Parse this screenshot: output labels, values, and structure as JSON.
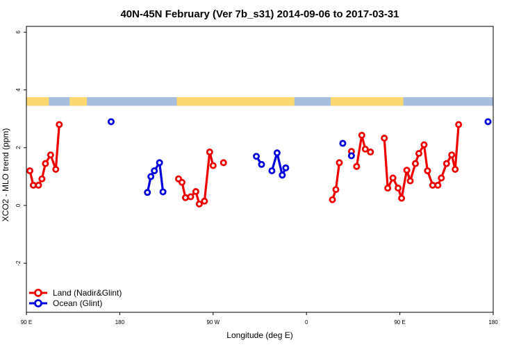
{
  "chart_data": {
    "type": "line",
    "title": "40N-45N February (Ver 7b_s31)   2014-09-06 to 2017-03-31",
    "xlabel": "Longitude (deg E)",
    "ylabel": "XCO2 - MLO trend (ppm)",
    "xlim": [
      -90,
      180
    ],
    "ylim": [
      -3.7,
      6.2
    ],
    "x_ticks": [
      {
        "value": -90,
        "label": "90 E"
      },
      {
        "value": -36,
        "label": "180"
      },
      {
        "value": 18,
        "label": "90 W"
      },
      {
        "value": 72,
        "label": "0"
      },
      {
        "value": 126,
        "label": "90 E"
      },
      {
        "value": 180,
        "label": "180"
      }
    ],
    "y_ticks": [
      {
        "value": -2,
        "label": "-2"
      },
      {
        "value": 0,
        "label": "0"
      },
      {
        "value": 2,
        "label": "2"
      },
      {
        "value": 4,
        "label": "4"
      },
      {
        "value": 6,
        "label": "6"
      }
    ],
    "legend_position": "bottom-left",
    "land_ocean_strip": {
      "y_range": [
        3.45,
        3.75
      ],
      "land_color": "#fcd970",
      "ocean_color": "#a8bede",
      "land_segments": [
        [
          -90,
          -77
        ],
        [
          -65,
          -55
        ],
        [
          -3,
          65
        ],
        [
          86,
          128
        ]
      ]
    },
    "series": [
      {
        "name": "Land (Nadir&Glint)",
        "color": "#ee0000",
        "segments": [
          [
            [
              -88,
              1.2
            ],
            [
              -86,
              0.7
            ],
            [
              -83,
              0.7
            ],
            [
              -81,
              0.92
            ],
            [
              -79,
              1.45
            ],
            [
              -76,
              1.75
            ],
            [
              -73,
              1.25
            ],
            [
              -71,
              2.8
            ]
          ],
          [
            [
              -2,
              0.92
            ],
            [
              0,
              0.8
            ],
            [
              2,
              0.27
            ],
            [
              5,
              0.3
            ],
            [
              8,
              0.48
            ],
            [
              10,
              0.05
            ],
            [
              13,
              0.15
            ],
            [
              16,
              1.85
            ],
            [
              18,
              1.38
            ]
          ],
          [
            [
              24,
              1.48
            ]
          ],
          [
            [
              87,
              0.2
            ],
            [
              89,
              0.55
            ],
            [
              91,
              1.48
            ]
          ],
          [
            [
              98,
              1.87
            ]
          ],
          [
            [
              101,
              1.35
            ],
            [
              104,
              2.43
            ],
            [
              106,
              1.95
            ],
            [
              109,
              1.85
            ]
          ],
          [
            [
              117,
              2.33
            ],
            [
              119,
              0.6
            ],
            [
              122,
              0.95
            ],
            [
              125,
              0.6
            ],
            [
              127,
              0.25
            ],
            [
              130,
              1.22
            ],
            [
              132,
              0.85
            ],
            [
              135,
              1.45
            ],
            [
              137,
              1.8
            ],
            [
              140,
              2.1
            ],
            [
              142,
              1.2
            ],
            [
              145,
              0.7
            ],
            [
              148,
              0.7
            ],
            [
              150,
              0.95
            ],
            [
              153,
              1.45
            ],
            [
              156,
              1.75
            ],
            [
              158,
              1.25
            ],
            [
              160,
              2.8
            ]
          ]
        ]
      },
      {
        "name": "Ocean (Glint)",
        "color": "#0000dd",
        "segments": [
          [
            [
              -41,
              2.9
            ]
          ],
          [
            [
              -20,
              0.45
            ],
            [
              -18,
              1.0
            ],
            [
              -16,
              1.2
            ],
            [
              -13,
              1.48
            ],
            [
              -11,
              0.47
            ]
          ],
          [
            [
              43,
              1.7
            ],
            [
              46,
              1.42
            ]
          ],
          [
            [
              52,
              1.2
            ],
            [
              55,
              1.82
            ],
            [
              58,
              1.05
            ],
            [
              60,
              1.3
            ]
          ],
          [
            [
              93,
              2.15
            ]
          ],
          [
            [
              98,
              1.72
            ]
          ],
          [
            [
              177,
              2.9
            ]
          ]
        ]
      }
    ]
  }
}
